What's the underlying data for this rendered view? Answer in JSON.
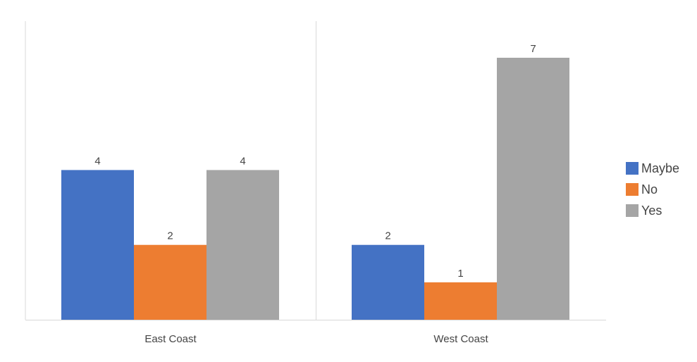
{
  "chart_data": {
    "type": "bar",
    "categories": [
      "East Coast",
      "West Coast"
    ],
    "series": [
      {
        "name": "Maybe",
        "values": [
          4,
          2
        ],
        "color": "#4472C4"
      },
      {
        "name": "No",
        "values": [
          2,
          1
        ],
        "color": "#ED7D31"
      },
      {
        "name": "Yes",
        "values": [
          4,
          7
        ],
        "color": "#A5A5A5"
      }
    ],
    "ylim": [
      0,
      8
    ],
    "grid": false,
    "legend_position": "right",
    "data_labels": true
  }
}
